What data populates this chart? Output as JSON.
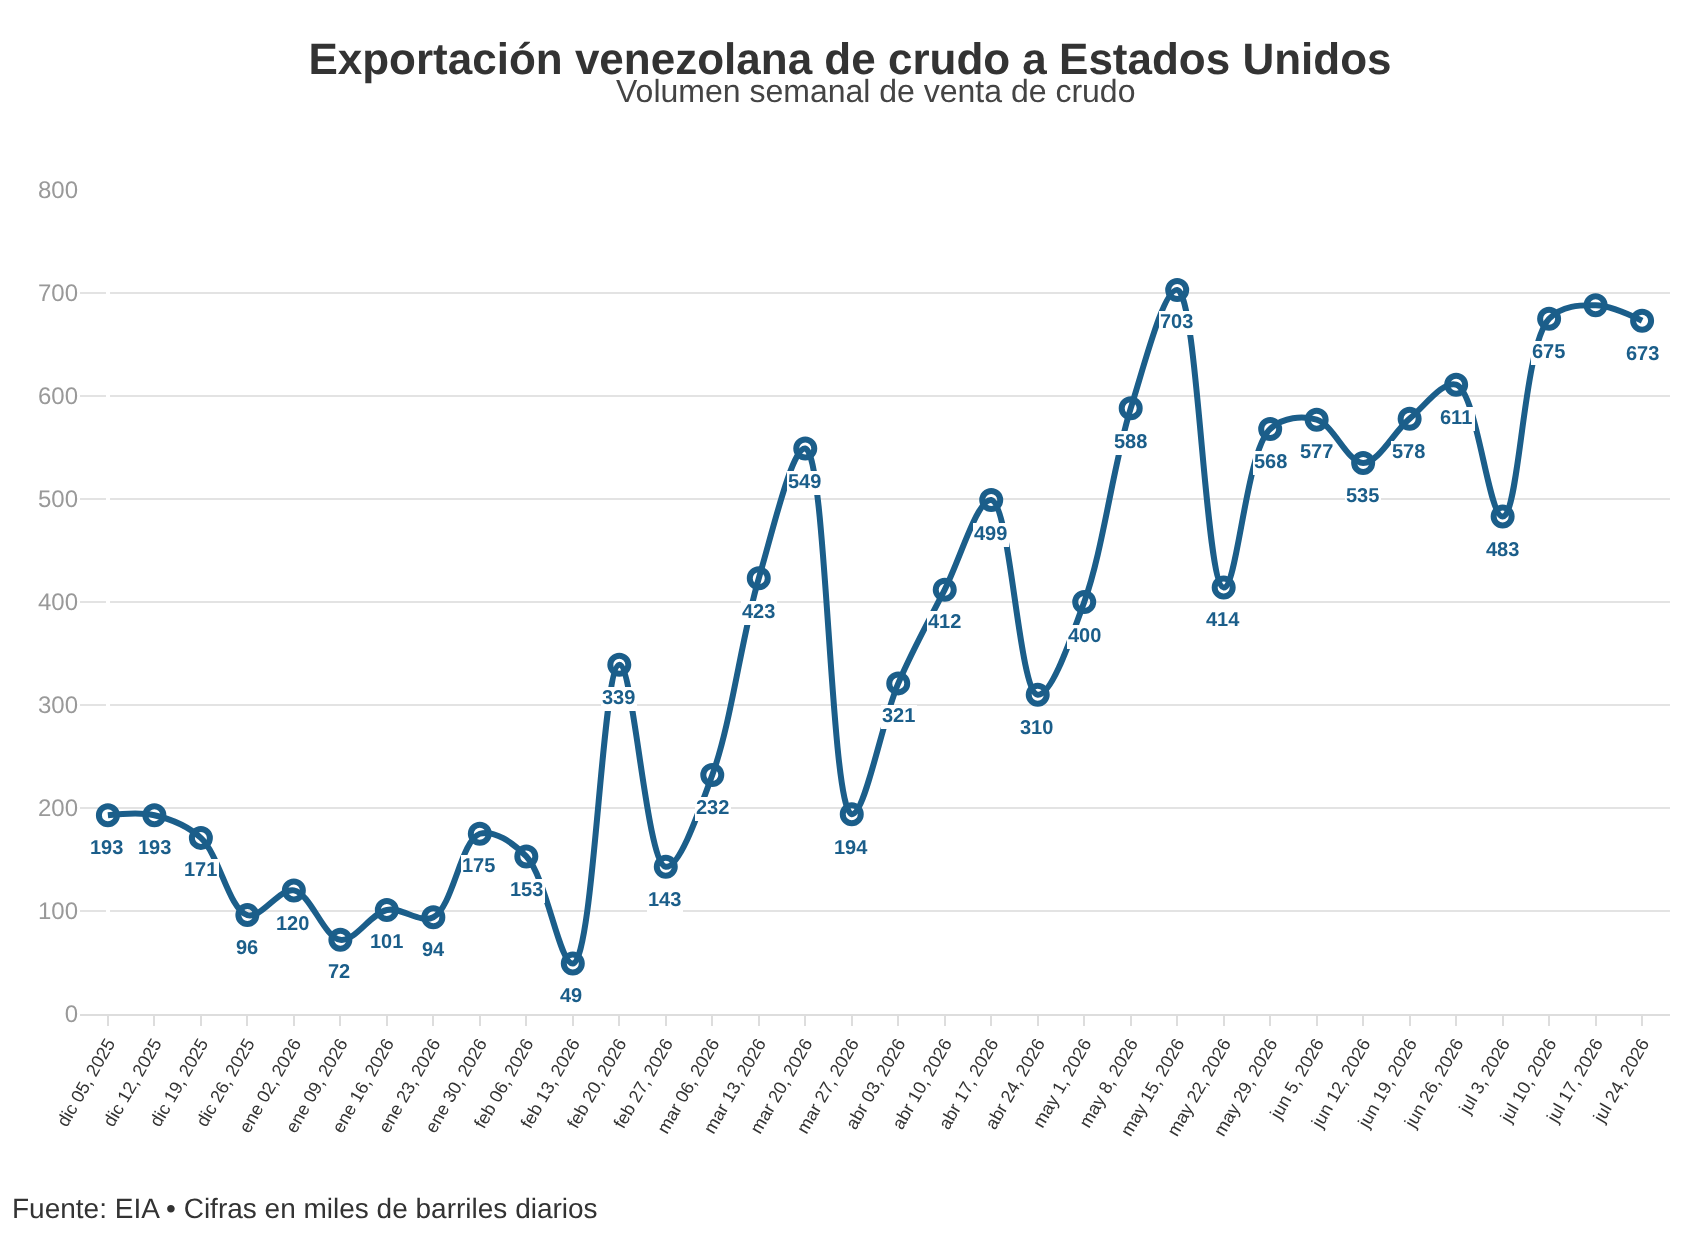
{
  "chart_data": {
    "type": "line",
    "title": "Exportación venezolana de crudo a Estados Unidos",
    "subtitle": "Volumen semanal de venta de crudo",
    "categories": [
      "dic 05, 2025",
      "dic 12, 2025",
      "dic 19, 2025",
      "dic 26, 2025",
      "ene 02, 2026",
      "ene 09, 2026",
      "ene 16, 2026",
      "ene 23, 2026",
      "ene 30, 2026",
      "feb 06, 2026",
      "feb 13, 2026",
      "feb 20, 2026",
      "feb 27, 2026",
      "mar 06, 2026",
      "mar 13, 2026",
      "mar 20, 2026",
      "mar 27, 2026",
      "abr 03, 2026",
      "abr 10, 2026",
      "abr 17, 2026",
      "abr 24, 2026",
      "may 1, 2026",
      "may 8, 2026",
      "may 15, 2026",
      "may 22, 2026",
      "may 29, 2026",
      "jun 5, 2026",
      "jun 12, 2026",
      "jun 19, 2026",
      "jun 26, 2026",
      "jul 3, 2026",
      "jul 10, 2026",
      "jul 17, 2026",
      "jul 24, 2026"
    ],
    "series": [
      {
        "color": "#1b5e8a",
        "values": [
          193,
          193,
          171,
          96,
          120,
          72,
          101,
          94,
          175,
          153,
          49,
          339,
          143,
          232,
          423,
          549,
          194,
          321,
          412,
          499,
          310,
          400,
          588,
          703,
          414,
          568,
          577,
          535,
          578,
          611,
          483,
          675,
          688,
          673
        ],
        "value_labels": [
          "193",
          "193",
          "171",
          "96",
          "120",
          "72",
          "101",
          "94",
          "175",
          "153",
          "49",
          "339",
          "143",
          "232",
          "423",
          "549",
          "194",
          "321",
          "412",
          "499",
          "310",
          "400",
          "588",
          "703",
          "414",
          "568",
          "577",
          "535",
          "578",
          "611",
          "483",
          "675",
          null,
          "673"
        ]
      }
    ],
    "ylim": [
      0,
      800
    ],
    "yticks": [
      0,
      100,
      200,
      300,
      400,
      500,
      600,
      700,
      800
    ],
    "grid": "y",
    "marker": "circle",
    "line_style": "solid",
    "annotations": [
      "Fuente: EIA • Cifras en miles de barriles diarios"
    ]
  }
}
